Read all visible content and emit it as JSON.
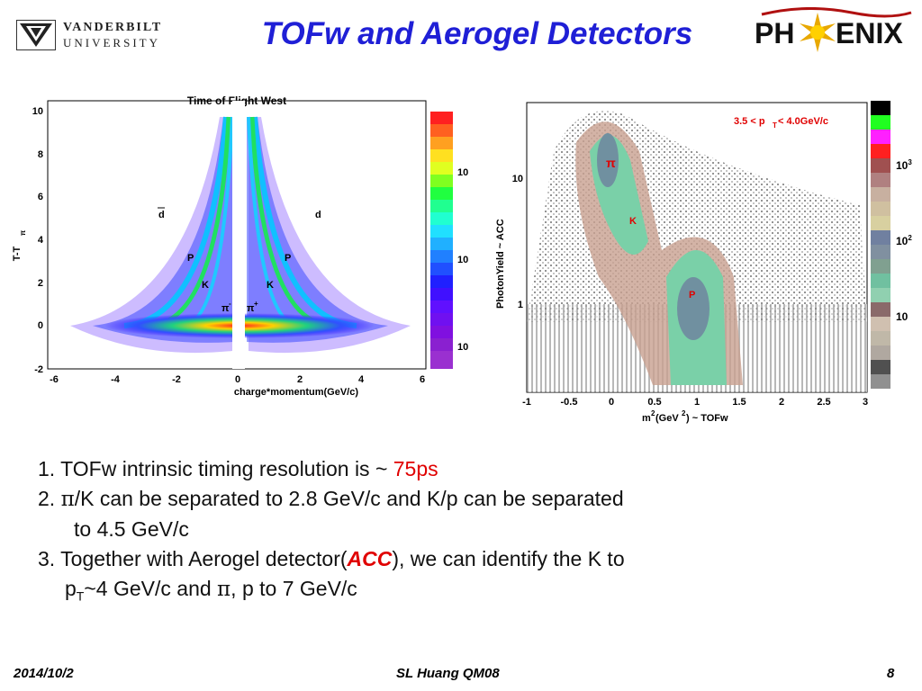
{
  "header": {
    "title": "TOFw and Aerogel Detectors",
    "vu_logo": {
      "top": "VANDERBILT",
      "bottom": "UNIVERSITY"
    },
    "phenix_logo": {
      "left": "PH",
      "right": "ENIX"
    }
  },
  "plot1": {
    "title": "Time of Flight West",
    "ylabel_main": "T-T",
    "ylabel_sub": "π",
    "xlabel": "charge*momentum(GeV/c)",
    "xticks": [
      "-6",
      "-4",
      "-2",
      "0",
      "2",
      "4",
      "6"
    ],
    "yticks": [
      "-2",
      "0",
      "2",
      "4",
      "6",
      "8",
      "10"
    ],
    "labels": {
      "dbar": "d",
      "d": "d",
      "pbar": "P",
      "p": "P",
      "kminus": "K",
      "kplus": "K",
      "piminus": "π",
      "piplus": "π",
      "minus": "-",
      "plus": "+"
    },
    "colorbar_labels": [
      "10",
      "10",
      "10"
    ]
  },
  "plot2": {
    "cut_text": "3.5 < p",
    "cut_sub": "T",
    "cut_tail": " < 4.0GeV/c",
    "ylabel": "PhotonYield ~ ACC",
    "xlabel_a": "m",
    "xlabel_sup": "2",
    "xlabel_b": "(GeV",
    "xlabel_sup2": "2",
    "xlabel_c": ") ~ TOFw",
    "xticks": [
      "-1",
      "-0.5",
      "0",
      "0.5",
      "1",
      "1.5",
      "2",
      "2.5",
      "3"
    ],
    "yticks": [
      "10",
      "1"
    ],
    "labels": {
      "pi": "π",
      "k": "K",
      "p": "P"
    },
    "colorbar_labels": [
      {
        "base": "10",
        "exp": "3"
      },
      {
        "base": "10",
        "exp": "2"
      },
      {
        "base": "10",
        "exp": ""
      }
    ]
  },
  "bullets": {
    "b1_prefix": "1.  TOFw  intrinsic timing resolution is ~ ",
    "b1_value": "75ps",
    "b2_a": "2.  ",
    "b2_pi": "π",
    "b2_b": "/K can be separated to 2.8 GeV/c and K/p can be separated",
    "b2_c": "to 4.5 GeV/c",
    "b3_a": "3. Together with Aerogel detector(",
    "b3_acc": "ACC",
    "b3_b": "), we can identify the K to",
    "b3_c": "p",
    "b3_sub": "T",
    "b3_d": "~4 GeV/c  and ",
    "b3_pi": "π",
    "b3_e": ", p to 7 GeV/c"
  },
  "footer": {
    "date": "2014/10/2",
    "center": "SL Huang QM08",
    "page": "8"
  },
  "colors": {
    "title": "#1f1fd6",
    "highlight": "#e00000"
  }
}
